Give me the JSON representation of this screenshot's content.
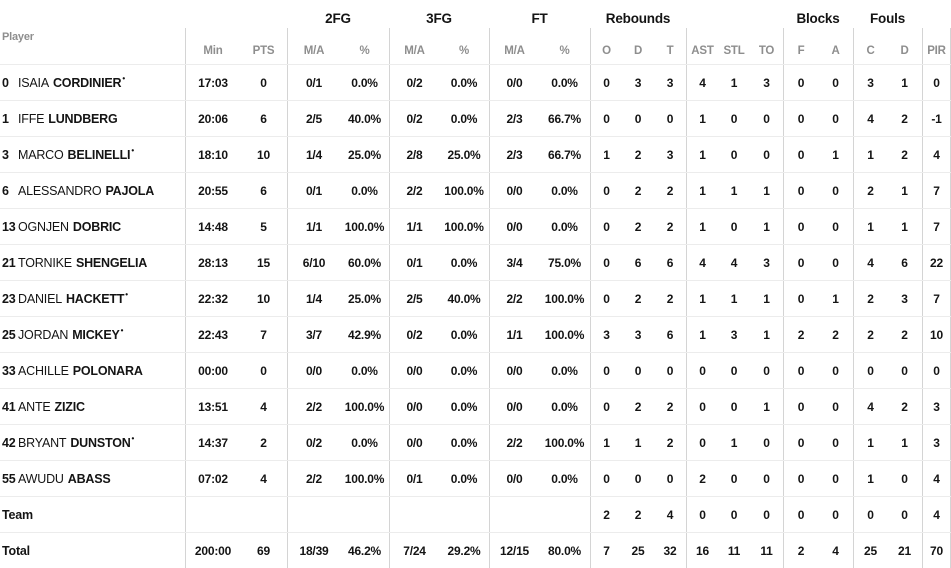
{
  "header": {
    "player_label": "Player",
    "groups": [
      {
        "label": "2FG"
      },
      {
        "label": "3FG"
      },
      {
        "label": "FT"
      },
      {
        "label": "Rebounds"
      },
      {
        "label": "Blocks"
      },
      {
        "label": "Fouls"
      }
    ],
    "stat_columns": [
      "Min",
      "PTS",
      "M/A",
      "%",
      "M/A",
      "%",
      "M/A",
      "%",
      "O",
      "D",
      "T",
      "AST",
      "STL",
      "TO",
      "F",
      "A",
      "C",
      "D",
      "PIR"
    ]
  },
  "starter_marker": "•",
  "rows": [
    {
      "num": "0",
      "first": "ISAIA",
      "last": "CORDINIER",
      "starter": true,
      "cells": [
        "17:03",
        "0",
        "0/1",
        "0.0%",
        "0/2",
        "0.0%",
        "0/0",
        "0.0%",
        "0",
        "3",
        "3",
        "4",
        "1",
        "3",
        "0",
        "0",
        "3",
        "1",
        "0"
      ]
    },
    {
      "num": "1",
      "first": "IFFE",
      "last": "LUNDBERG",
      "starter": false,
      "cells": [
        "20:06",
        "6",
        "2/5",
        "40.0%",
        "0/2",
        "0.0%",
        "2/3",
        "66.7%",
        "0",
        "0",
        "0",
        "1",
        "0",
        "0",
        "0",
        "0",
        "4",
        "2",
        "-1"
      ]
    },
    {
      "num": "3",
      "first": "MARCO",
      "last": "BELINELLI",
      "starter": true,
      "cells": [
        "18:10",
        "10",
        "1/4",
        "25.0%",
        "2/8",
        "25.0%",
        "2/3",
        "66.7%",
        "1",
        "2",
        "3",
        "1",
        "0",
        "0",
        "0",
        "1",
        "1",
        "2",
        "4"
      ]
    },
    {
      "num": "6",
      "first": "ALESSANDRO",
      "last": "PAJOLA",
      "starter": false,
      "cells": [
        "20:55",
        "6",
        "0/1",
        "0.0%",
        "2/2",
        "100.0%",
        "0/0",
        "0.0%",
        "0",
        "2",
        "2",
        "1",
        "1",
        "1",
        "0",
        "0",
        "2",
        "1",
        "7"
      ]
    },
    {
      "num": "13",
      "first": "OGNJEN",
      "last": "DOBRIC",
      "starter": false,
      "cells": [
        "14:48",
        "5",
        "1/1",
        "100.0%",
        "1/1",
        "100.0%",
        "0/0",
        "0.0%",
        "0",
        "2",
        "2",
        "1",
        "0",
        "1",
        "0",
        "0",
        "1",
        "1",
        "7"
      ]
    },
    {
      "num": "21",
      "first": "TORNIKE",
      "last": "SHENGELIA",
      "starter": false,
      "cells": [
        "28:13",
        "15",
        "6/10",
        "60.0%",
        "0/1",
        "0.0%",
        "3/4",
        "75.0%",
        "0",
        "6",
        "6",
        "4",
        "4",
        "3",
        "0",
        "0",
        "4",
        "6",
        "22"
      ]
    },
    {
      "num": "23",
      "first": "DANIEL",
      "last": "HACKETT",
      "starter": true,
      "cells": [
        "22:32",
        "10",
        "1/4",
        "25.0%",
        "2/5",
        "40.0%",
        "2/2",
        "100.0%",
        "0",
        "2",
        "2",
        "1",
        "1",
        "1",
        "0",
        "1",
        "2",
        "3",
        "7"
      ]
    },
    {
      "num": "25",
      "first": "JORDAN",
      "last": "MICKEY",
      "starter": true,
      "cells": [
        "22:43",
        "7",
        "3/7",
        "42.9%",
        "0/2",
        "0.0%",
        "1/1",
        "100.0%",
        "3",
        "3",
        "6",
        "1",
        "3",
        "1",
        "2",
        "2",
        "2",
        "2",
        "10"
      ]
    },
    {
      "num": "33",
      "first": "ACHILLE",
      "last": "POLONARA",
      "starter": false,
      "cells": [
        "00:00",
        "0",
        "0/0",
        "0.0%",
        "0/0",
        "0.0%",
        "0/0",
        "0.0%",
        "0",
        "0",
        "0",
        "0",
        "0",
        "0",
        "0",
        "0",
        "0",
        "0",
        "0"
      ]
    },
    {
      "num": "41",
      "first": "ANTE",
      "last": "ZIZIC",
      "starter": false,
      "cells": [
        "13:51",
        "4",
        "2/2",
        "100.0%",
        "0/0",
        "0.0%",
        "0/0",
        "0.0%",
        "0",
        "2",
        "2",
        "0",
        "0",
        "1",
        "0",
        "0",
        "4",
        "2",
        "3"
      ]
    },
    {
      "num": "42",
      "first": "BRYANT",
      "last": "DUNSTON",
      "starter": true,
      "cells": [
        "14:37",
        "2",
        "0/2",
        "0.0%",
        "0/0",
        "0.0%",
        "2/2",
        "100.0%",
        "1",
        "1",
        "2",
        "0",
        "1",
        "0",
        "0",
        "0",
        "1",
        "1",
        "3"
      ]
    },
    {
      "num": "55",
      "first": "AWUDU",
      "last": "ABASS",
      "starter": false,
      "cells": [
        "07:02",
        "4",
        "2/2",
        "100.0%",
        "0/1",
        "0.0%",
        "0/0",
        "0.0%",
        "0",
        "0",
        "0",
        "2",
        "0",
        "0",
        "0",
        "0",
        "1",
        "0",
        "4"
      ]
    },
    {
      "num": "",
      "first": "",
      "last": "Team",
      "starter": false,
      "cells": [
        "",
        "",
        "",
        "",
        "",
        "",
        "",
        "",
        "2",
        "2",
        "4",
        "0",
        "0",
        "0",
        "0",
        "0",
        "0",
        "0",
        "4"
      ]
    },
    {
      "num": "",
      "first": "",
      "last": "Total",
      "starter": false,
      "cells": [
        "200:00",
        "69",
        "18/39",
        "46.2%",
        "7/24",
        "29.2%",
        "12/15",
        "80.0%",
        "7",
        "25",
        "32",
        "16",
        "11",
        "11",
        "2",
        "4",
        "25",
        "21",
        "70"
      ]
    }
  ]
}
